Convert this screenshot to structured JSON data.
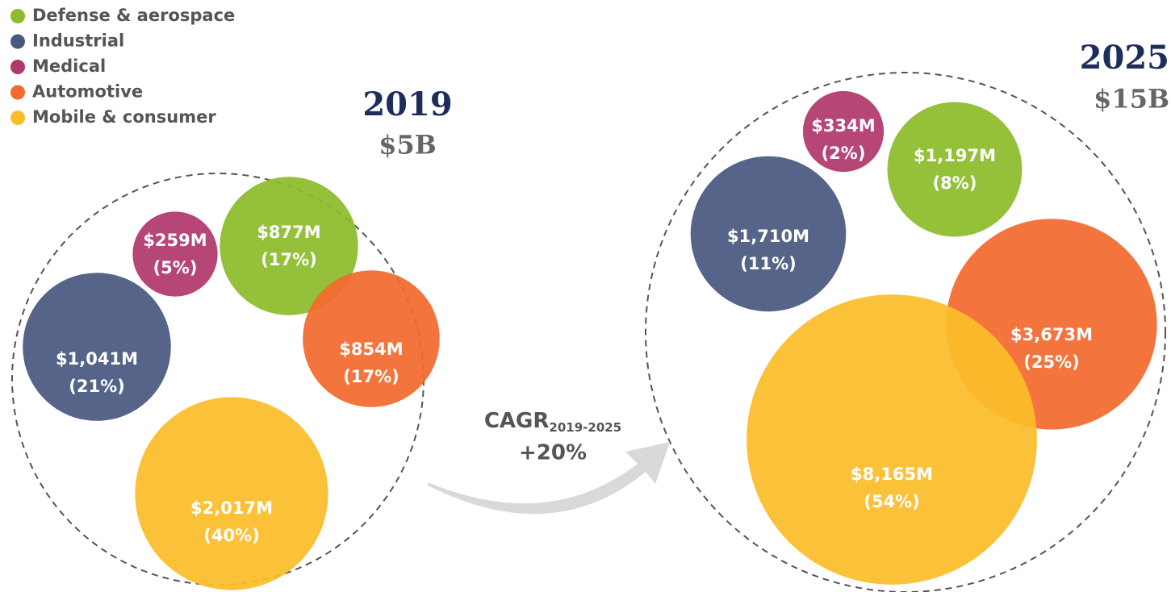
{
  "legend": [
    {
      "name": "Defense & aerospace",
      "color": "#8dbb2b"
    },
    {
      "name": "Industrial",
      "color": "#48587f"
    },
    {
      "name": "Medical",
      "color": "#b0386b"
    },
    {
      "name": "Automotive",
      "color": "#f26a2e"
    },
    {
      "name": "Mobile & consumer",
      "color": "#fbbd2a"
    }
  ],
  "chart_data": [
    {
      "type": "bubble",
      "title": "2019",
      "subtitle": "$5B",
      "values": [
        877,
        1041,
        259,
        854,
        2017
      ],
      "value_labels": [
        "$877M",
        "$1,041M",
        "$259M",
        "$854M",
        "$2,017M"
      ],
      "shares": [
        17,
        21,
        5,
        17,
        40
      ],
      "share_labels": [
        "(17%)",
        "(21%)",
        "(5%)",
        "(17%)",
        "(40%)"
      ]
    },
    {
      "type": "bubble",
      "title": "2025",
      "subtitle": "$15B",
      "values": [
        1197,
        1710,
        334,
        3673,
        8165
      ],
      "value_labels": [
        "$1,197M",
        "$1,710M",
        "$334M",
        "$3,673M",
        "$8,165M"
      ],
      "shares": [
        8,
        11,
        2,
        25,
        54
      ],
      "share_labels": [
        "(8%)",
        "(11%)",
        "(2%)",
        "(25%)",
        "(54%)"
      ]
    }
  ],
  "annotation": {
    "text": "CAGR",
    "subscript": "2019-2025",
    "value": "+20%"
  }
}
